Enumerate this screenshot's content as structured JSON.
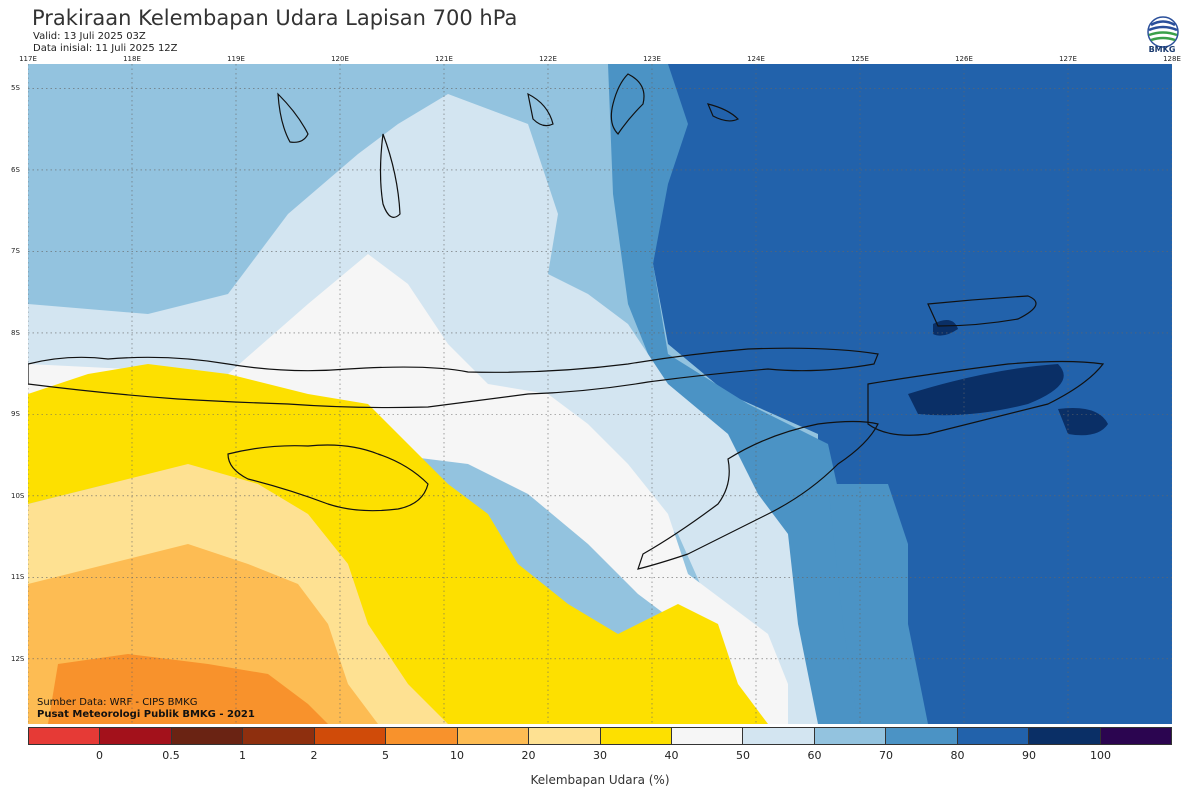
{
  "header": {
    "title": "Prakiraan Kelembapan Udara Lapisan 700 hPa",
    "valid": "Valid: 13 Juli 2025 03Z",
    "initial": "Data inisial: 11 Juli 2025 12Z"
  },
  "logo": {
    "text": "BMKG",
    "icon": "bmkg-logo-icon"
  },
  "map": {
    "lon_labels": [
      "117E",
      "118E",
      "119E",
      "120E",
      "121E",
      "122E",
      "123E",
      "124E",
      "125E",
      "126E",
      "127E",
      "128E"
    ],
    "lat_labels": [
      "5S",
      "6S",
      "7S",
      "8S",
      "9S",
      "10S",
      "11S",
      "12S"
    ],
    "lon_range": [
      117,
      128
    ],
    "lat_range": [
      -4.7,
      -12.8
    ]
  },
  "footer": {
    "source": "Sumber Data: WRF - CIPS BMKG",
    "org": "Pusat Meteorologi Publik BMKG - 2021"
  },
  "colorbar": {
    "colors": [
      "#e63a36",
      "#a3111b",
      "#6a2313",
      "#8e2f0e",
      "#d04b09",
      "#f8922c",
      "#fdbc53",
      "#fee192",
      "#fde000",
      "#f6f6f6",
      "#d3e5f1",
      "#93c3df",
      "#4b93c5",
      "#2262ab",
      "#0a2f66",
      "#2b0550"
    ],
    "ticks": [
      "0",
      "0.5",
      "1",
      "2",
      "5",
      "10",
      "20",
      "30",
      "40",
      "50",
      "60",
      "70",
      "80",
      "90",
      "100"
    ],
    "label": "Kelembapan Udara (%)"
  }
}
